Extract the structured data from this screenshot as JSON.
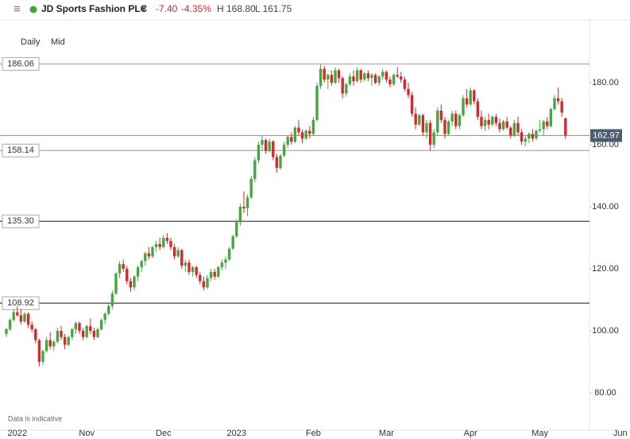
{
  "header": {
    "menu_icon": "≡",
    "instrument": "JD Sports Fashion PLC",
    "dropdown": "▾",
    "change": "-7.40",
    "change_pct": "-4.35%",
    "high": "H 168.80",
    "low": "L 161.75"
  },
  "controls": {
    "interval": "Daily",
    "price_type": "Mid"
  },
  "chart_data": {
    "type": "candlestick",
    "note": "Data is indicative",
    "up_color": "#43a83f",
    "down_color": "#d9262b",
    "ylim": [
      68,
      200
    ],
    "yticks": [
      {
        "value": 80,
        "label": "80.00"
      },
      {
        "value": 100,
        "label": "100.00"
      },
      {
        "value": 120,
        "label": "120.00"
      },
      {
        "value": 140,
        "label": "140.00"
      },
      {
        "value": 160,
        "label": "160.00"
      },
      {
        "value": 180,
        "label": "180.00"
      }
    ],
    "levels": [
      186.06,
      158.14,
      {
        "value": 135.3,
        "label": "135.30"
      },
      108.92
    ],
    "last_price": 162.97,
    "categories": [
      null,
      null,
      null,
      "2022",
      null,
      null,
      null,
      null,
      null,
      null,
      null,
      null,
      null,
      null,
      null,
      null,
      null,
      null,
      null,
      null,
      null,
      null,
      "Nov",
      null,
      null,
      null,
      null,
      null,
      null,
      null,
      null,
      null,
      null,
      null,
      null,
      null,
      null,
      null,
      null,
      null,
      null,
      null,
      null,
      "Dec",
      null,
      null,
      null,
      null,
      null,
      null,
      null,
      null,
      null,
      null,
      null,
      null,
      null,
      null,
      null,
      null,
      null,
      null,
      null,
      "2023",
      null,
      null,
      null,
      null,
      null,
      null,
      null,
      null,
      null,
      null,
      null,
      null,
      null,
      null,
      null,
      null,
      null,
      null,
      null,
      null,
      "Feb",
      null,
      null,
      null,
      null,
      null,
      null,
      null,
      null,
      null,
      null,
      null,
      null,
      null,
      null,
      null,
      null,
      null,
      null,
      null,
      "Mar",
      null,
      null,
      null,
      null,
      null,
      null,
      null,
      null,
      null,
      null,
      null,
      null,
      null,
      null,
      null,
      null,
      null,
      null,
      null,
      null,
      null,
      null,
      "Apr",
      null,
      null,
      null,
      null,
      null,
      null,
      null,
      null,
      null,
      null,
      null,
      null,
      null,
      null,
      null,
      null,
      null,
      null,
      "May",
      null,
      null,
      null,
      null,
      null,
      null,
      null,
      null,
      null,
      null,
      null,
      null,
      null,
      null,
      null,
      null,
      null,
      null,
      null,
      null,
      null,
      "Jun"
    ],
    "ohlc": [
      [
        99,
        101,
        98,
        100.5
      ],
      [
        100.5,
        104,
        100,
        103.5
      ],
      [
        103.5,
        107,
        103,
        106
      ],
      [
        106,
        108,
        104.5,
        105
      ],
      [
        105,
        107,
        102,
        103
      ],
      [
        103,
        106,
        102.5,
        105.5
      ],
      [
        105.5,
        106,
        101,
        102
      ],
      [
        102,
        103,
        99.5,
        100.5
      ],
      [
        100.5,
        101,
        96,
        97
      ],
      [
        97,
        97.5,
        88.5,
        90
      ],
      [
        90,
        94,
        89,
        93.5
      ],
      [
        93.5,
        98,
        93,
        97
      ],
      [
        97,
        99.5,
        94,
        95
      ],
      [
        95,
        97,
        93.5,
        96.5
      ],
      [
        96.5,
        101,
        96,
        100
      ],
      [
        100,
        101.5,
        97,
        98
      ],
      [
        98,
        99,
        94,
        95.5
      ],
      [
        95.5,
        98.5,
        95,
        98
      ],
      [
        98,
        101,
        97,
        100.5
      ],
      [
        100.5,
        103,
        99,
        102.5
      ],
      [
        102.5,
        103,
        99,
        100
      ],
      [
        100,
        101,
        97,
        98
      ],
      [
        98,
        102,
        97.5,
        101.5
      ],
      [
        101.5,
        104,
        99,
        100
      ],
      [
        100,
        101,
        97,
        98
      ],
      [
        98,
        101,
        97.5,
        100.5
      ],
      [
        100.5,
        104,
        100,
        103.5
      ],
      [
        103.5,
        106,
        102,
        105.5
      ],
      [
        105.5,
        109,
        105,
        108
      ],
      [
        108,
        113,
        107,
        112
      ],
      [
        112,
        119,
        111.5,
        118.5
      ],
      [
        118.5,
        122.5,
        117,
        121.5
      ],
      [
        121.5,
        123,
        119,
        120
      ],
      [
        120,
        121,
        115,
        116
      ],
      [
        116,
        117,
        112.5,
        114
      ],
      [
        114,
        118,
        113,
        117.5
      ],
      [
        117.5,
        121,
        116,
        120.5
      ],
      [
        120.5,
        123,
        119,
        122.5
      ],
      [
        122.5,
        125.5,
        121,
        125
      ],
      [
        125,
        127,
        123,
        124
      ],
      [
        124,
        127.5,
        123.5,
        127
      ],
      [
        127,
        129,
        125.5,
        128
      ],
      [
        128,
        130,
        126,
        127
      ],
      [
        127,
        131,
        126.5,
        130
      ],
      [
        130,
        131.5,
        128,
        129
      ],
      [
        129,
        130,
        126,
        127
      ],
      [
        127,
        128,
        123,
        124
      ],
      [
        124,
        127,
        123.5,
        126
      ],
      [
        126,
        126.5,
        120,
        121
      ],
      [
        121,
        123,
        119,
        122
      ],
      [
        122,
        123,
        118,
        119
      ],
      [
        119,
        121,
        117.5,
        120.5
      ],
      [
        120.5,
        121,
        117,
        118
      ],
      [
        118,
        119,
        115,
        116
      ],
      [
        116,
        117.5,
        113,
        114
      ],
      [
        114,
        118,
        113.5,
        117
      ],
      [
        117,
        120,
        116,
        119
      ],
      [
        119,
        120,
        116.5,
        117.5
      ],
      [
        117.5,
        121,
        117,
        120.5
      ],
      [
        120.5,
        123,
        119.5,
        122
      ],
      [
        122,
        124,
        120,
        123
      ],
      [
        123,
        127,
        122.5,
        126.5
      ],
      [
        126.5,
        131,
        126,
        130.5
      ],
      [
        130.5,
        136,
        130,
        135
      ],
      [
        135,
        141,
        134,
        140
      ],
      [
        140,
        145,
        138,
        139.5
      ],
      [
        139.5,
        144,
        137,
        143
      ],
      [
        143,
        150,
        142.5,
        149
      ],
      [
        149,
        156,
        148,
        155
      ],
      [
        155,
        161,
        154,
        160
      ],
      [
        160,
        163,
        158,
        161.5
      ],
      [
        161.5,
        162,
        157,
        158
      ],
      [
        158,
        162,
        157.5,
        161
      ],
      [
        161,
        161.5,
        155,
        156
      ],
      [
        156,
        157,
        151,
        152.5
      ],
      [
        152.5,
        157,
        152,
        156.5
      ],
      [
        156.5,
        161,
        156,
        160
      ],
      [
        160,
        163,
        159,
        162.5
      ],
      [
        162.5,
        164,
        160,
        161
      ],
      [
        161,
        166,
        160.5,
        165.5
      ],
      [
        165.5,
        168,
        163,
        164
      ],
      [
        164,
        165,
        160.5,
        162
      ],
      [
        162,
        165,
        161.5,
        164.5
      ],
      [
        164.5,
        166,
        162,
        163.5
      ],
      [
        163.5,
        169,
        163,
        168
      ],
      [
        168,
        180,
        167.5,
        179
      ],
      [
        179,
        186,
        178,
        184.5
      ],
      [
        184.5,
        185.5,
        180,
        181
      ],
      [
        181,
        183,
        178,
        182.5
      ],
      [
        182.5,
        184,
        179,
        180
      ],
      [
        180,
        185,
        179.5,
        184
      ],
      [
        184,
        184.5,
        180,
        181.5
      ],
      [
        181.5,
        182,
        175,
        176.5
      ],
      [
        176.5,
        180,
        175.5,
        179.5
      ],
      [
        179.5,
        183,
        179,
        182
      ],
      [
        182,
        184,
        179,
        180.5
      ],
      [
        180.5,
        185,
        180,
        184
      ],
      [
        184,
        184.5,
        180,
        181
      ],
      [
        181,
        183.5,
        180.5,
        183
      ],
      [
        183,
        184,
        180.5,
        181.5
      ],
      [
        181.5,
        183,
        179,
        182.5
      ],
      [
        182.5,
        183,
        179.5,
        180
      ],
      [
        180,
        182.5,
        179,
        182
      ],
      [
        182,
        184.5,
        181,
        183.5
      ],
      [
        183.5,
        184,
        180,
        181
      ],
      [
        181,
        182,
        178.5,
        179.5
      ],
      [
        179.5,
        183,
        179,
        182.5
      ],
      [
        182.5,
        185,
        181.5,
        182
      ],
      [
        182,
        183.5,
        180,
        181
      ],
      [
        181,
        182,
        177,
        178
      ],
      [
        178,
        180,
        175,
        176
      ],
      [
        176,
        177,
        169,
        170
      ],
      [
        170,
        172,
        165,
        166.5
      ],
      [
        166.5,
        170,
        166,
        169.5
      ],
      [
        169.5,
        170,
        163,
        164
      ],
      [
        164,
        168,
        162,
        167
      ],
      [
        167,
        168,
        158,
        160
      ],
      [
        160,
        165,
        159,
        164
      ],
      [
        164,
        172,
        163,
        171
      ],
      [
        171,
        173,
        167,
        168
      ],
      [
        168,
        169,
        162,
        163.5
      ],
      [
        163.5,
        168,
        163,
        167.5
      ],
      [
        167.5,
        171,
        166,
        170
      ],
      [
        170,
        171,
        165,
        166
      ],
      [
        166,
        170,
        165,
        169.5
      ],
      [
        169.5,
        176,
        169,
        175
      ],
      [
        175,
        178,
        172,
        173
      ],
      [
        173,
        178.5,
        172.5,
        177.5
      ],
      [
        177.5,
        178,
        173,
        174
      ],
      [
        174,
        175,
        168,
        169
      ],
      [
        169,
        171,
        165,
        166
      ],
      [
        166,
        169,
        164.5,
        168
      ],
      [
        168,
        170,
        165,
        166.5
      ],
      [
        166.5,
        169.5,
        166,
        169
      ],
      [
        169,
        170,
        166,
        167
      ],
      [
        167,
        168.5,
        164,
        165
      ],
      [
        165,
        168,
        164.5,
        167.5
      ],
      [
        167.5,
        169,
        165,
        165.5
      ],
      [
        165.5,
        166,
        162,
        163
      ],
      [
        163,
        168,
        162.5,
        167
      ],
      [
        167,
        169,
        163,
        164
      ],
      [
        164,
        165,
        160,
        161
      ],
      [
        161,
        163,
        159.5,
        162
      ],
      [
        162,
        164,
        160.5,
        163.5
      ],
      [
        163.5,
        165,
        161,
        162
      ],
      [
        162,
        165,
        161.5,
        164.5
      ],
      [
        164.5,
        168,
        164,
        165
      ],
      [
        165,
        168,
        163,
        167.5
      ],
      [
        167.5,
        169,
        165,
        166
      ],
      [
        166,
        172,
        165.5,
        171.5
      ],
      [
        171.5,
        176,
        171,
        175
      ],
      [
        175,
        178.5,
        173,
        174
      ],
      [
        174,
        175,
        169,
        170.37
      ],
      [
        168.5,
        168.8,
        161.75,
        162.97
      ],
      null,
      null,
      null,
      null,
      null,
      null,
      null,
      null,
      null,
      null,
      null,
      null,
      null,
      null,
      null
    ]
  }
}
